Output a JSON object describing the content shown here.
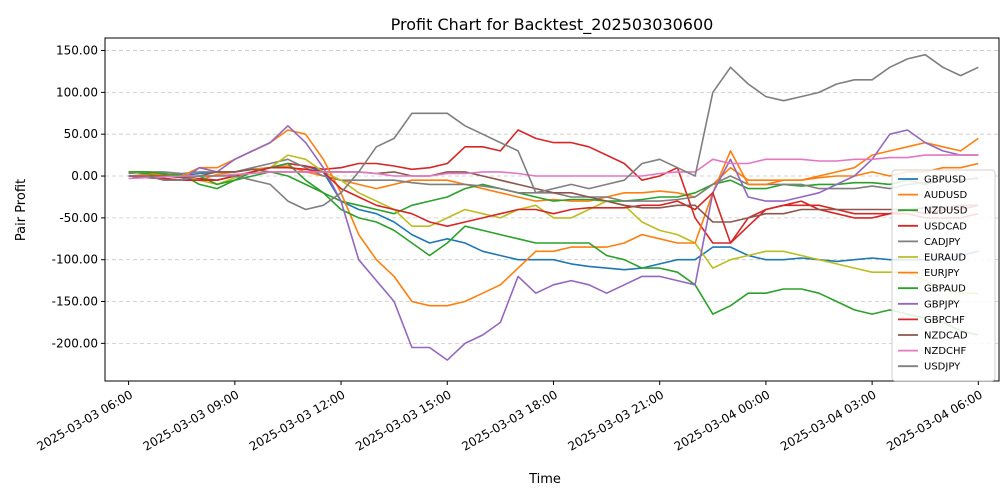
{
  "chart_data": {
    "type": "line",
    "title": "Profit Chart for Backtest_202503030600",
    "xlabel": "Time",
    "ylabel": "Pair Profit",
    "grid": "y-dashed",
    "legend_position": "bottom-right",
    "x_range": [
      "2025-03-03 05:20",
      "2025-03-04 06:35"
    ],
    "x": [
      "2025-03-03 06:00",
      "2025-03-03 06:30",
      "2025-03-03 07:00",
      "2025-03-03 07:30",
      "2025-03-03 08:00",
      "2025-03-03 08:30",
      "2025-03-03 09:00",
      "2025-03-03 09:30",
      "2025-03-03 10:00",
      "2025-03-03 10:30",
      "2025-03-03 11:00",
      "2025-03-03 11:30",
      "2025-03-03 12:00",
      "2025-03-03 12:30",
      "2025-03-03 13:00",
      "2025-03-03 13:30",
      "2025-03-03 14:00",
      "2025-03-03 14:30",
      "2025-03-03 15:00",
      "2025-03-03 15:30",
      "2025-03-03 16:00",
      "2025-03-03 16:30",
      "2025-03-03 17:00",
      "2025-03-03 17:30",
      "2025-03-03 18:00",
      "2025-03-03 18:30",
      "2025-03-03 19:00",
      "2025-03-03 19:30",
      "2025-03-03 20:00",
      "2025-03-03 20:30",
      "2025-03-03 21:00",
      "2025-03-03 21:30",
      "2025-03-03 22:00",
      "2025-03-03 22:30",
      "2025-03-03 23:00",
      "2025-03-03 23:30",
      "2025-03-04 00:00",
      "2025-03-04 00:30",
      "2025-03-04 01:00",
      "2025-03-04 01:30",
      "2025-03-04 02:00",
      "2025-03-04 02:30",
      "2025-03-04 03:00",
      "2025-03-04 03:30",
      "2025-03-04 04:00",
      "2025-03-04 04:30",
      "2025-03-04 05:00",
      "2025-03-04 05:30",
      "2025-03-04 06:00"
    ],
    "x_ticks": [
      "2025-03-03 06:00",
      "2025-03-03 09:00",
      "2025-03-03 12:00",
      "2025-03-03 15:00",
      "2025-03-03 18:00",
      "2025-03-03 21:00",
      "2025-03-04 00:00",
      "2025-03-04 03:00",
      "2025-03-04 06:00"
    ],
    "y_range": [
      -245,
      165
    ],
    "y_ticks": [
      "-200.00",
      "-150.00",
      "-100.00",
      "-50.00",
      "0.00",
      "50.00",
      "100.00",
      "150.00"
    ],
    "series": [
      {
        "name": "GBPUSD",
        "color": "#1f77b4",
        "values": [
          5,
          3,
          2,
          0,
          3,
          5,
          5,
          8,
          10,
          15,
          12,
          5,
          -30,
          -40,
          -45,
          -55,
          -70,
          -80,
          -75,
          -80,
          -90,
          -95,
          -100,
          -100,
          -100,
          -105,
          -108,
          -110,
          -112,
          -110,
          -105,
          -100,
          -100,
          -85,
          -85,
          -95,
          -100,
          -100,
          -98,
          -100,
          -102,
          -100,
          -98,
          -100,
          -100,
          -100,
          -100,
          -95,
          -90
        ]
      },
      {
        "name": "AUDUSD",
        "color": "#ff7f0e",
        "values": [
          0,
          2,
          0,
          0,
          -5,
          2,
          5,
          8,
          10,
          12,
          5,
          0,
          -5,
          -10,
          -15,
          -10,
          -5,
          -5,
          -5,
          -10,
          -15,
          -20,
          -25,
          -30,
          -28,
          -30,
          -30,
          -25,
          -20,
          -20,
          -18,
          -20,
          -25,
          -10,
          10,
          -5,
          -5,
          -5,
          -5,
          -2,
          0,
          0,
          5,
          0,
          5,
          5,
          10,
          10,
          15
        ]
      },
      {
        "name": "NZDUSD",
        "color": "#2ca02c",
        "values": [
          5,
          3,
          2,
          2,
          -10,
          -15,
          -5,
          0,
          5,
          0,
          -10,
          -20,
          -30,
          -35,
          -40,
          -45,
          -35,
          -30,
          -25,
          -15,
          -10,
          -15,
          -20,
          -25,
          -30,
          -28,
          -28,
          -30,
          -30,
          -28,
          -25,
          -25,
          -20,
          -10,
          -5,
          -15,
          -15,
          -10,
          -12,
          -10,
          -10,
          -8,
          -8,
          -10,
          -5,
          -10,
          -5,
          -5,
          -3
        ]
      },
      {
        "name": "USDCAD",
        "color": "#d62728",
        "values": [
          0,
          -2,
          -3,
          -5,
          -3,
          -5,
          0,
          5,
          10,
          15,
          12,
          8,
          10,
          15,
          15,
          12,
          8,
          10,
          15,
          35,
          35,
          30,
          55,
          45,
          40,
          40,
          35,
          25,
          15,
          -5,
          0,
          10,
          -50,
          -80,
          -80,
          -50,
          -40,
          -35,
          -30,
          -40,
          -45,
          -50,
          -50,
          -45,
          -40,
          -45,
          -40,
          -40,
          -35
        ]
      },
      {
        "name": "CADJPY",
        "color": "#7f7f7f",
        "values": [
          3,
          5,
          5,
          3,
          5,
          5,
          5,
          10,
          15,
          20,
          10,
          0,
          -5,
          -5,
          -5,
          -5,
          -8,
          -10,
          -10,
          -10,
          -12,
          -15,
          -20,
          -20,
          -20,
          -25,
          -25,
          -25,
          -30,
          -30,
          -30,
          -28,
          -25,
          -10,
          0,
          -10,
          -10,
          -10,
          -10,
          -15,
          -15,
          -15,
          -12,
          -15,
          -10,
          -8,
          -5,
          -5,
          -2
        ]
      },
      {
        "name": "EURAUD",
        "color": "#bcbd22",
        "values": [
          5,
          5,
          3,
          0,
          -5,
          -10,
          -2,
          5,
          10,
          25,
          20,
          5,
          -5,
          -20,
          -30,
          -40,
          -60,
          -60,
          -50,
          -40,
          -45,
          -50,
          -40,
          -35,
          -50,
          -50,
          -40,
          -30,
          -35,
          -55,
          -65,
          -70,
          -80,
          -110,
          -100,
          -95,
          -90,
          -90,
          -95,
          -100,
          -105,
          -110,
          -115,
          -115,
          -115,
          -125,
          -135,
          -140,
          -140
        ]
      },
      {
        "name": "EURJPY",
        "color": "#ff7f0e",
        "values": [
          5,
          5,
          0,
          0,
          10,
          10,
          20,
          30,
          40,
          55,
          50,
          20,
          -20,
          -70,
          -100,
          -120,
          -150,
          -155,
          -155,
          -150,
          -140,
          -130,
          -110,
          -90,
          -90,
          -85,
          -85,
          -85,
          -80,
          -70,
          -75,
          -80,
          -80,
          -20,
          30,
          -10,
          -10,
          -5,
          -5,
          0,
          5,
          10,
          25,
          30,
          35,
          40,
          35,
          30,
          45
        ]
      },
      {
        "name": "GBPAUD",
        "color": "#2ca02c",
        "values": [
          5,
          5,
          3,
          0,
          0,
          -10,
          -5,
          5,
          10,
          15,
          -5,
          -20,
          -40,
          -50,
          -55,
          -65,
          -80,
          -95,
          -80,
          -60,
          -65,
          -70,
          -75,
          -80,
          -80,
          -80,
          -80,
          -95,
          -100,
          -110,
          -110,
          -115,
          -130,
          -165,
          -155,
          -140,
          -140,
          -135,
          -135,
          -140,
          -150,
          -160,
          -165,
          -160,
          -165,
          -170,
          -175,
          -185,
          -190
        ]
      },
      {
        "name": "GBPJPY",
        "color": "#9467bd",
        "values": [
          0,
          0,
          -3,
          -5,
          10,
          5,
          20,
          30,
          40,
          60,
          40,
          10,
          -30,
          -100,
          -125,
          -150,
          -205,
          -205,
          -220,
          -200,
          -190,
          -175,
          -120,
          -140,
          -130,
          -125,
          -130,
          -140,
          -130,
          -120,
          -120,
          -125,
          -130,
          -20,
          20,
          -25,
          -30,
          -30,
          -25,
          -20,
          -10,
          0,
          20,
          50,
          55,
          40,
          30,
          25,
          25
        ]
      },
      {
        "name": "GBPCHF",
        "color": "#d62728",
        "values": [
          0,
          -2,
          -3,
          -5,
          -5,
          -5,
          0,
          5,
          10,
          10,
          8,
          5,
          -15,
          -25,
          -35,
          -40,
          -45,
          -55,
          -60,
          -55,
          -50,
          -45,
          -40,
          -40,
          -45,
          -40,
          -38,
          -38,
          -38,
          -35,
          -35,
          -30,
          -40,
          -20,
          -80,
          -60,
          -40,
          -35,
          -35,
          -35,
          -40,
          -45,
          -45,
          -45,
          -45,
          -50,
          -50,
          -50,
          -45
        ]
      },
      {
        "name": "NZDCAD",
        "color": "#8c564b",
        "values": [
          0,
          0,
          0,
          -2,
          0,
          5,
          5,
          8,
          5,
          5,
          5,
          5,
          5,
          5,
          3,
          5,
          0,
          0,
          5,
          5,
          0,
          -5,
          -10,
          -15,
          -20,
          -20,
          -25,
          -30,
          -35,
          -38,
          -38,
          -35,
          -35,
          -55,
          -55,
          -50,
          -45,
          -45,
          -40,
          -40,
          -40,
          -40,
          -40,
          -40,
          -40,
          -38,
          -38,
          -35,
          -35
        ]
      },
      {
        "name": "NZDCHF",
        "color": "#e377c2",
        "values": [
          -3,
          -2,
          -1,
          0,
          0,
          0,
          2,
          3,
          5,
          5,
          5,
          5,
          5,
          5,
          3,
          0,
          0,
          0,
          3,
          3,
          5,
          5,
          3,
          0,
          0,
          0,
          0,
          0,
          0,
          0,
          3,
          5,
          5,
          20,
          15,
          15,
          20,
          20,
          20,
          18,
          18,
          20,
          20,
          22,
          22,
          25,
          25,
          25,
          25
        ]
      },
      {
        "name": "USDJPY",
        "color": "#7f7f7f",
        "values": [
          0,
          0,
          -5,
          -5,
          0,
          0,
          0,
          -5,
          -10,
          -30,
          -40,
          -35,
          -20,
          5,
          35,
          45,
          75,
          75,
          75,
          60,
          50,
          40,
          30,
          -20,
          -15,
          -10,
          -15,
          -10,
          -5,
          15,
          20,
          10,
          0,
          100,
          130,
          110,
          95,
          90,
          95,
          100,
          110,
          115,
          115,
          130,
          140,
          145,
          130,
          120,
          130
        ]
      }
    ]
  }
}
